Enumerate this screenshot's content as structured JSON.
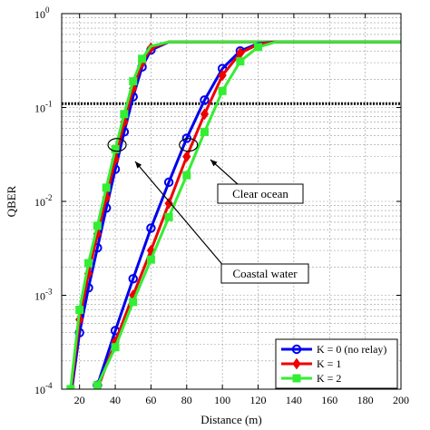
{
  "chart_data": {
    "type": "line",
    "xlabel": "Distance (m)",
    "ylabel": "QBER",
    "xlim": [
      10,
      200
    ],
    "ylim": [
      0.0001,
      1
    ],
    "yscale": "log",
    "grid": true,
    "x_ticks": [
      20,
      40,
      60,
      80,
      100,
      120,
      140,
      160,
      180,
      200
    ],
    "y_ticks": [
      {
        "value": 0.0001,
        "base": "10",
        "exp": "-4"
      },
      {
        "value": 0.001,
        "base": "10",
        "exp": "-3"
      },
      {
        "value": 0.01,
        "base": "10",
        "exp": "-2"
      },
      {
        "value": 0.1,
        "base": "10",
        "exp": "-1"
      },
      {
        "value": 1,
        "base": "10",
        "exp": "0"
      }
    ],
    "threshold": {
      "y": 0.11,
      "style": "dotted",
      "color": "#000000"
    },
    "legend_position": "bottom-right",
    "series": [
      {
        "name": "K = 0 (no relay)",
        "color": "#0000ee",
        "marker": "circle",
        "group": "coastal",
        "x": [
          15,
          20,
          25,
          30,
          35,
          40,
          45,
          50,
          55,
          60,
          70
        ],
        "y": [
          8e-05,
          0.0004,
          0.0012,
          0.0032,
          0.0085,
          0.022,
          0.055,
          0.13,
          0.27,
          0.41,
          0.5
        ]
      },
      {
        "name": "K = 1",
        "color": "#ee0000",
        "marker": "diamond",
        "group": "coastal",
        "x": [
          15,
          20,
          25,
          30,
          35,
          40,
          45,
          50,
          55,
          60,
          70
        ],
        "y": [
          9e-05,
          0.00055,
          0.0017,
          0.0045,
          0.011,
          0.028,
          0.07,
          0.16,
          0.3,
          0.43,
          0.5
        ]
      },
      {
        "name": "K = 2",
        "color": "#33ee33",
        "marker": "square",
        "group": "coastal",
        "x": [
          15,
          20,
          25,
          30,
          35,
          40,
          45,
          50,
          55,
          60,
          70
        ],
        "y": [
          0.0001,
          0.0007,
          0.0022,
          0.0055,
          0.014,
          0.036,
          0.085,
          0.19,
          0.33,
          0.45,
          0.5
        ]
      },
      {
        "name": "K = 0 (no relay)",
        "color": "#0000ee",
        "marker": "circle",
        "group": "clear",
        "x": [
          30,
          40,
          50,
          60,
          70,
          80,
          90,
          100,
          110,
          120,
          130
        ],
        "y": [
          0.00011,
          0.00042,
          0.0015,
          0.0052,
          0.016,
          0.047,
          0.12,
          0.26,
          0.4,
          0.48,
          0.5
        ]
      },
      {
        "name": "K = 1",
        "color": "#ee0000",
        "marker": "diamond",
        "group": "clear",
        "x": [
          30,
          40,
          50,
          60,
          70,
          80,
          90,
          100,
          110,
          120,
          130,
          140
        ],
        "y": [
          0.0001,
          0.00032,
          0.001,
          0.003,
          0.0095,
          0.03,
          0.085,
          0.22,
          0.38,
          0.47,
          0.5,
          0.5
        ]
      },
      {
        "name": "K = 2",
        "color": "#33ee33",
        "marker": "square",
        "group": "clear",
        "x": [
          30,
          40,
          50,
          60,
          70,
          80,
          90,
          100,
          110,
          120,
          130,
          140
        ],
        "y": [
          0.00011,
          0.00028,
          0.00085,
          0.0024,
          0.0068,
          0.019,
          0.055,
          0.15,
          0.31,
          0.44,
          0.5,
          0.5
        ]
      }
    ],
    "annotations": [
      {
        "text": "Clear ocean",
        "target_x": 80,
        "target_y": 0.04
      },
      {
        "text": "Coastal water",
        "target_x": 40,
        "target_y": 0.04
      }
    ]
  }
}
